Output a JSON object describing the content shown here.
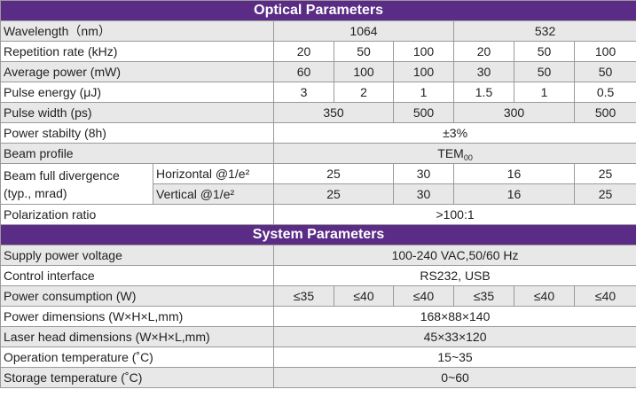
{
  "optical": {
    "title": "Optical Parameters",
    "wavelength": {
      "label": "Wavelength（nm）",
      "v1064": "1064",
      "v532": "532"
    },
    "rep_rate": {
      "label": "Repetition rate (kHz)",
      "values": [
        "20",
        "50",
        "100",
        "20",
        "50",
        "100"
      ]
    },
    "avg_power": {
      "label": "Average power (mW)",
      "values": [
        "60",
        "100",
        "100",
        "30",
        "50",
        "50"
      ]
    },
    "pulse_energy": {
      "label": "Pulse energy (μJ)",
      "values": [
        "3",
        "2",
        "1",
        "1.5",
        "1",
        "0.5"
      ]
    },
    "pulse_width": {
      "label": "Pulse width (ps)",
      "values": [
        "350",
        "500",
        "300",
        "500"
      ]
    },
    "power_stability": {
      "label": "Power stabilty (8h)",
      "value": "±3%"
    },
    "beam_profile": {
      "label": "Beam profile",
      "value_main": "TEM",
      "value_sub": "00"
    },
    "divergence": {
      "label_line1": "Beam full divergence",
      "label_line2": "(typ., mrad)",
      "horizontal": {
        "label": "Horizontal @1/e²",
        "values": [
          "25",
          "30",
          "16",
          "25"
        ]
      },
      "vertical": {
        "label": "Vertical @1/e²",
        "values": [
          "25",
          "30",
          "16",
          "25"
        ]
      }
    },
    "polarization": {
      "label": "Polarization ratio",
      "value": ">100:1"
    }
  },
  "system": {
    "title": "System Parameters",
    "supply_voltage": {
      "label": "Supply power voltage",
      "value": "100-240 VAC,50/60 Hz"
    },
    "control_interface": {
      "label": "Control interface",
      "value": "RS232, USB"
    },
    "power_consumption": {
      "label": "Power consumption (W)",
      "values": [
        "≤35",
        "≤40",
        "≤40",
        "≤35",
        "≤40",
        "≤40"
      ]
    },
    "power_dimensions": {
      "label": "Power dimensions (W×H×L,mm)",
      "value": "168×88×140"
    },
    "head_dimensions": {
      "label": "Laser head dimensions (W×H×L,mm)",
      "value": "45×33×120"
    },
    "operation_temp": {
      "label": "Operation temperature (˚C)",
      "value": "15~35"
    },
    "storage_temp": {
      "label": "Storage temperature (˚C)",
      "value": "0~60"
    }
  }
}
